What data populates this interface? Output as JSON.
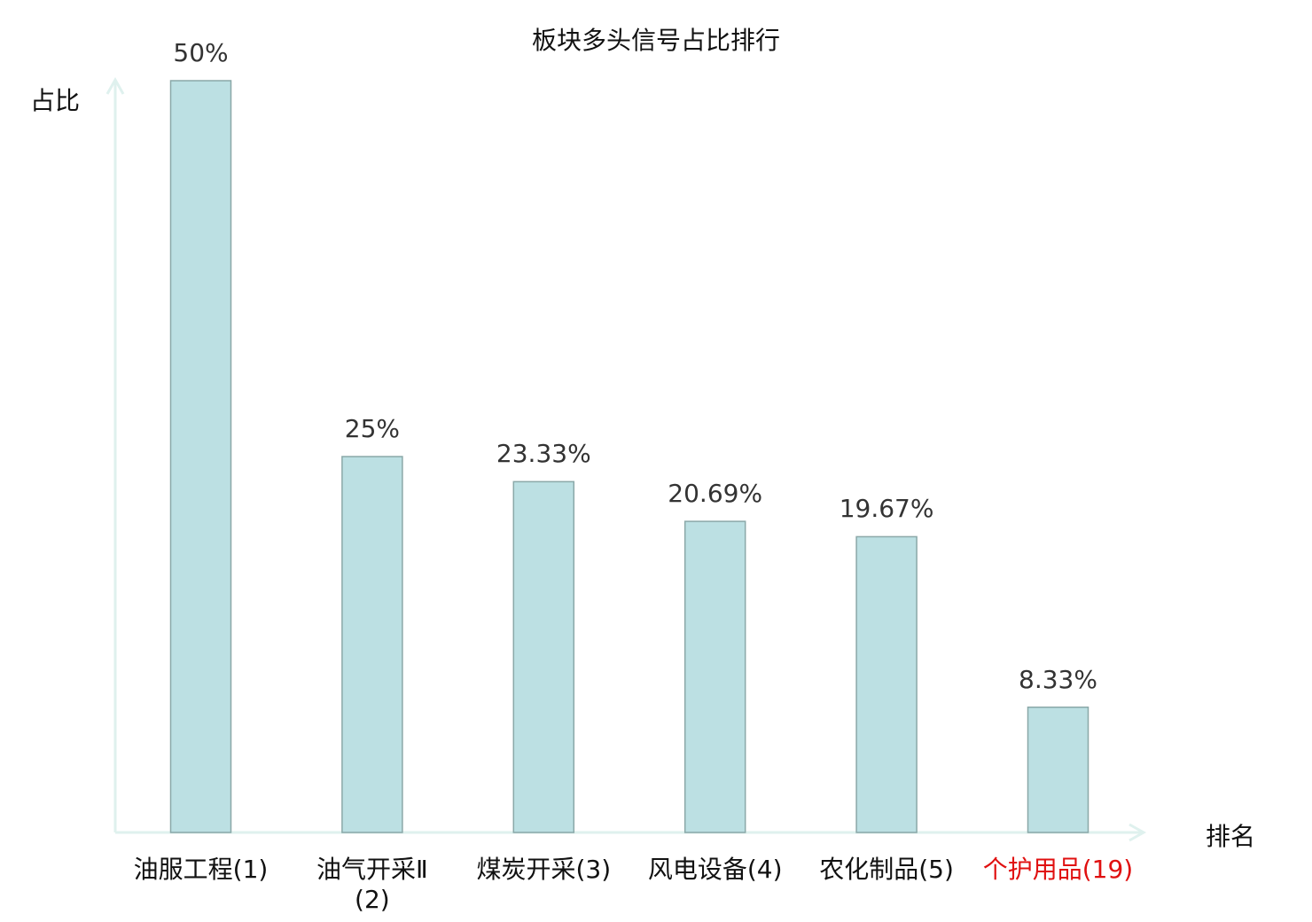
{
  "chart_data": {
    "type": "bar",
    "title": "板块多头信号占比排行",
    "xlabel": "排名",
    "ylabel": "占比",
    "categories": [
      "油服工程(1)",
      "油气开采Ⅱ(2)",
      "煤炭开采(3)",
      "风电设备(4)",
      "农化制品(5)",
      "个护用品(19)"
    ],
    "values": [
      50,
      25,
      23.33,
      20.69,
      19.67,
      8.33
    ],
    "value_labels": [
      "50%",
      "25%",
      "23.33%",
      "20.69%",
      "19.67%",
      "8.33%"
    ],
    "highlighted_category": "个护用品(19)",
    "ylim": [
      0,
      50
    ],
    "grid": false,
    "colors": {
      "bar_fill": "#bce0e3",
      "bar_stroke": "#8aa8a8",
      "axis": "#dff1ee",
      "highlight_label": "#e01010",
      "label": "#111111",
      "value_label": "#333333"
    }
  }
}
